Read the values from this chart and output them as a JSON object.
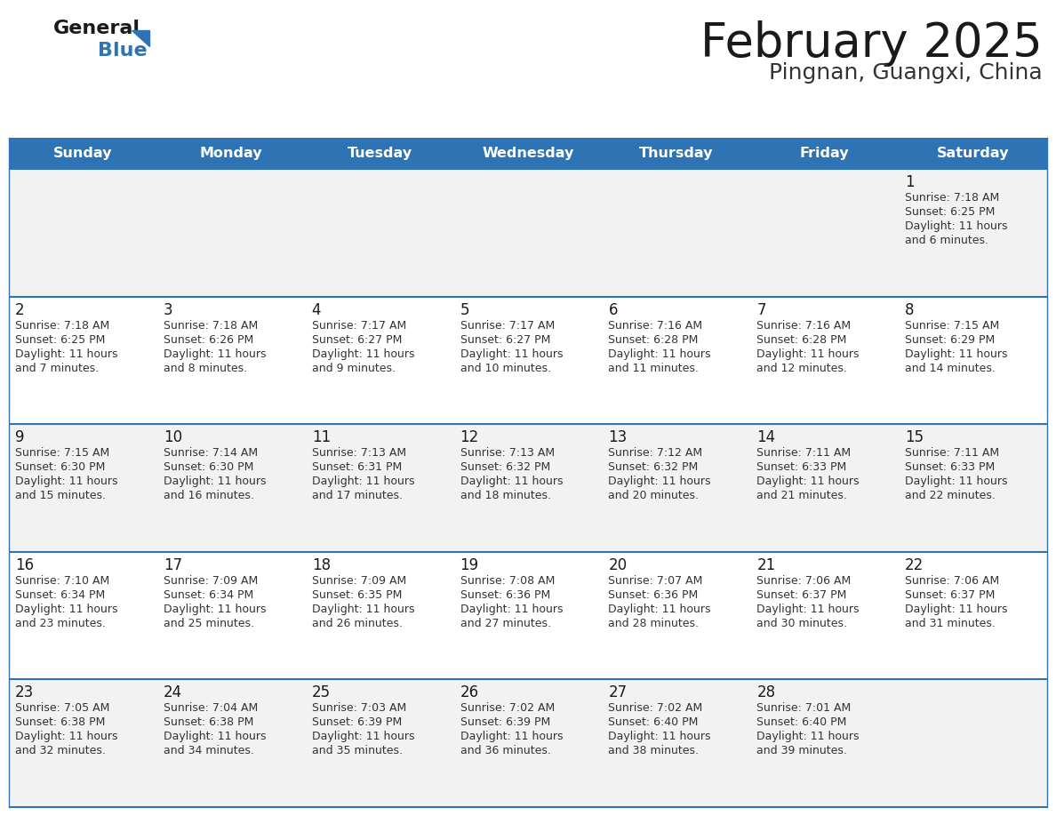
{
  "title": "February 2025",
  "subtitle": "Pingnan, Guangxi, China",
  "header_bg": "#2E74B5",
  "header_text_color": "#FFFFFF",
  "cell_bg_odd": "#F2F2F2",
  "cell_bg_even": "#FFFFFF",
  "border_color": "#2E74B5",
  "days_of_week": [
    "Sunday",
    "Monday",
    "Tuesday",
    "Wednesday",
    "Thursday",
    "Friday",
    "Saturday"
  ],
  "title_color": "#1a1a1a",
  "subtitle_color": "#333333",
  "day_number_color": "#1a1a1a",
  "info_color": "#333333",
  "calendar_data": [
    [
      null,
      null,
      null,
      null,
      null,
      null,
      {
        "day": "1",
        "sunrise": "7:18 AM",
        "sunset": "6:25 PM",
        "daylight_line1": "Daylight: 11 hours",
        "daylight_line2": "and 6 minutes."
      }
    ],
    [
      {
        "day": "2",
        "sunrise": "7:18 AM",
        "sunset": "6:25 PM",
        "daylight_line1": "Daylight: 11 hours",
        "daylight_line2": "and 7 minutes."
      },
      {
        "day": "3",
        "sunrise": "7:18 AM",
        "sunset": "6:26 PM",
        "daylight_line1": "Daylight: 11 hours",
        "daylight_line2": "and 8 minutes."
      },
      {
        "day": "4",
        "sunrise": "7:17 AM",
        "sunset": "6:27 PM",
        "daylight_line1": "Daylight: 11 hours",
        "daylight_line2": "and 9 minutes."
      },
      {
        "day": "5",
        "sunrise": "7:17 AM",
        "sunset": "6:27 PM",
        "daylight_line1": "Daylight: 11 hours",
        "daylight_line2": "and 10 minutes."
      },
      {
        "day": "6",
        "sunrise": "7:16 AM",
        "sunset": "6:28 PM",
        "daylight_line1": "Daylight: 11 hours",
        "daylight_line2": "and 11 minutes."
      },
      {
        "day": "7",
        "sunrise": "7:16 AM",
        "sunset": "6:28 PM",
        "daylight_line1": "Daylight: 11 hours",
        "daylight_line2": "and 12 minutes."
      },
      {
        "day": "8",
        "sunrise": "7:15 AM",
        "sunset": "6:29 PM",
        "daylight_line1": "Daylight: 11 hours",
        "daylight_line2": "and 14 minutes."
      }
    ],
    [
      {
        "day": "9",
        "sunrise": "7:15 AM",
        "sunset": "6:30 PM",
        "daylight_line1": "Daylight: 11 hours",
        "daylight_line2": "and 15 minutes."
      },
      {
        "day": "10",
        "sunrise": "7:14 AM",
        "sunset": "6:30 PM",
        "daylight_line1": "Daylight: 11 hours",
        "daylight_line2": "and 16 minutes."
      },
      {
        "day": "11",
        "sunrise": "7:13 AM",
        "sunset": "6:31 PM",
        "daylight_line1": "Daylight: 11 hours",
        "daylight_line2": "and 17 minutes."
      },
      {
        "day": "12",
        "sunrise": "7:13 AM",
        "sunset": "6:32 PM",
        "daylight_line1": "Daylight: 11 hours",
        "daylight_line2": "and 18 minutes."
      },
      {
        "day": "13",
        "sunrise": "7:12 AM",
        "sunset": "6:32 PM",
        "daylight_line1": "Daylight: 11 hours",
        "daylight_line2": "and 20 minutes."
      },
      {
        "day": "14",
        "sunrise": "7:11 AM",
        "sunset": "6:33 PM",
        "daylight_line1": "Daylight: 11 hours",
        "daylight_line2": "and 21 minutes."
      },
      {
        "day": "15",
        "sunrise": "7:11 AM",
        "sunset": "6:33 PM",
        "daylight_line1": "Daylight: 11 hours",
        "daylight_line2": "and 22 minutes."
      }
    ],
    [
      {
        "day": "16",
        "sunrise": "7:10 AM",
        "sunset": "6:34 PM",
        "daylight_line1": "Daylight: 11 hours",
        "daylight_line2": "and 23 minutes."
      },
      {
        "day": "17",
        "sunrise": "7:09 AM",
        "sunset": "6:34 PM",
        "daylight_line1": "Daylight: 11 hours",
        "daylight_line2": "and 25 minutes."
      },
      {
        "day": "18",
        "sunrise": "7:09 AM",
        "sunset": "6:35 PM",
        "daylight_line1": "Daylight: 11 hours",
        "daylight_line2": "and 26 minutes."
      },
      {
        "day": "19",
        "sunrise": "7:08 AM",
        "sunset": "6:36 PM",
        "daylight_line1": "Daylight: 11 hours",
        "daylight_line2": "and 27 minutes."
      },
      {
        "day": "20",
        "sunrise": "7:07 AM",
        "sunset": "6:36 PM",
        "daylight_line1": "Daylight: 11 hours",
        "daylight_line2": "and 28 minutes."
      },
      {
        "day": "21",
        "sunrise": "7:06 AM",
        "sunset": "6:37 PM",
        "daylight_line1": "Daylight: 11 hours",
        "daylight_line2": "and 30 minutes."
      },
      {
        "day": "22",
        "sunrise": "7:06 AM",
        "sunset": "6:37 PM",
        "daylight_line1": "Daylight: 11 hours",
        "daylight_line2": "and 31 minutes."
      }
    ],
    [
      {
        "day": "23",
        "sunrise": "7:05 AM",
        "sunset": "6:38 PM",
        "daylight_line1": "Daylight: 11 hours",
        "daylight_line2": "and 32 minutes."
      },
      {
        "day": "24",
        "sunrise": "7:04 AM",
        "sunset": "6:38 PM",
        "daylight_line1": "Daylight: 11 hours",
        "daylight_line2": "and 34 minutes."
      },
      {
        "day": "25",
        "sunrise": "7:03 AM",
        "sunset": "6:39 PM",
        "daylight_line1": "Daylight: 11 hours",
        "daylight_line2": "and 35 minutes."
      },
      {
        "day": "26",
        "sunrise": "7:02 AM",
        "sunset": "6:39 PM",
        "daylight_line1": "Daylight: 11 hours",
        "daylight_line2": "and 36 minutes."
      },
      {
        "day": "27",
        "sunrise": "7:02 AM",
        "sunset": "6:40 PM",
        "daylight_line1": "Daylight: 11 hours",
        "daylight_line2": "and 38 minutes."
      },
      {
        "day": "28",
        "sunrise": "7:01 AM",
        "sunset": "6:40 PM",
        "daylight_line1": "Daylight: 11 hours",
        "daylight_line2": "and 39 minutes."
      },
      null
    ]
  ]
}
